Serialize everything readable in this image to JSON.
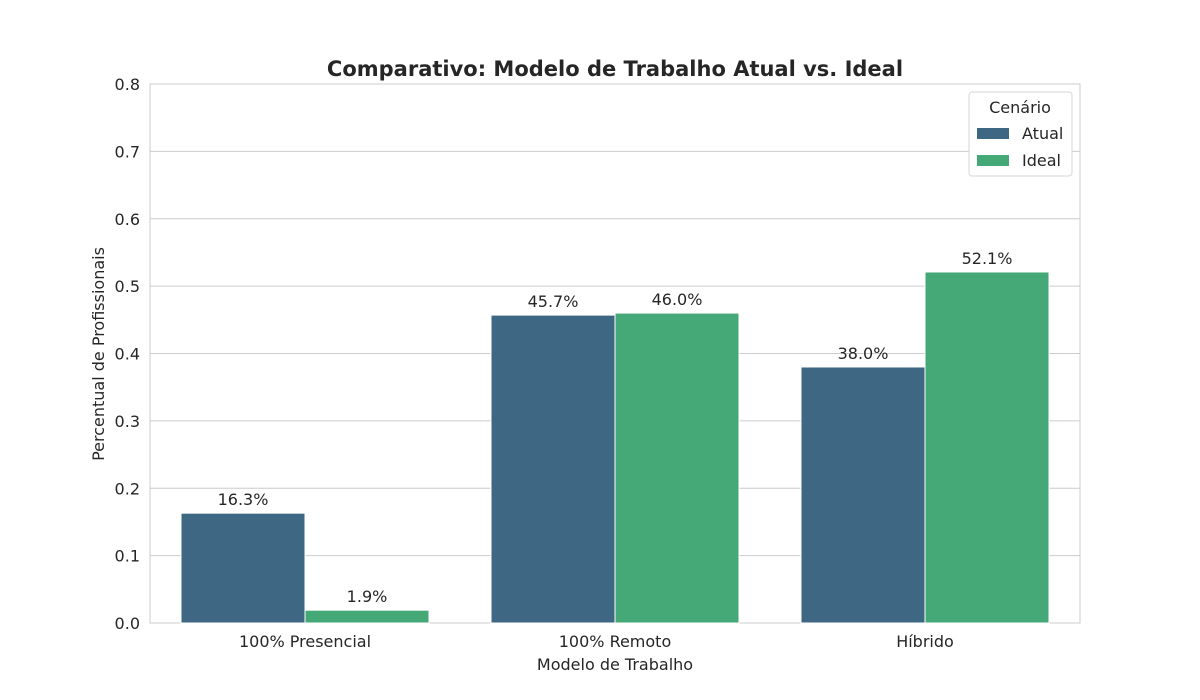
{
  "chart_data": {
    "type": "bar",
    "title": "Comparativo: Modelo de Trabalho Atual vs. Ideal",
    "xlabel": "Modelo de Trabalho",
    "ylabel": "Percentual de Profissionais",
    "categories": [
      "100% Presencial",
      "100% Remoto",
      "Híbrido"
    ],
    "series": [
      {
        "name": "Atual",
        "values": [
          0.163,
          0.457,
          0.38
        ],
        "labels": [
          "16.3%",
          "45.7%",
          "38.0%"
        ],
        "color": "#3e6783"
      },
      {
        "name": "Ideal",
        "values": [
          0.019,
          0.46,
          0.521
        ],
        "labels": [
          "1.9%",
          "46.0%",
          "52.1%"
        ],
        "color": "#45a877"
      }
    ],
    "ylim": [
      0,
      0.8
    ],
    "yticks": [
      "0.0",
      "0.1",
      "0.2",
      "0.3",
      "0.4",
      "0.5",
      "0.6",
      "0.7",
      "0.8"
    ],
    "grid": true,
    "legend": {
      "title": "Cenário",
      "position": "top-right"
    }
  }
}
